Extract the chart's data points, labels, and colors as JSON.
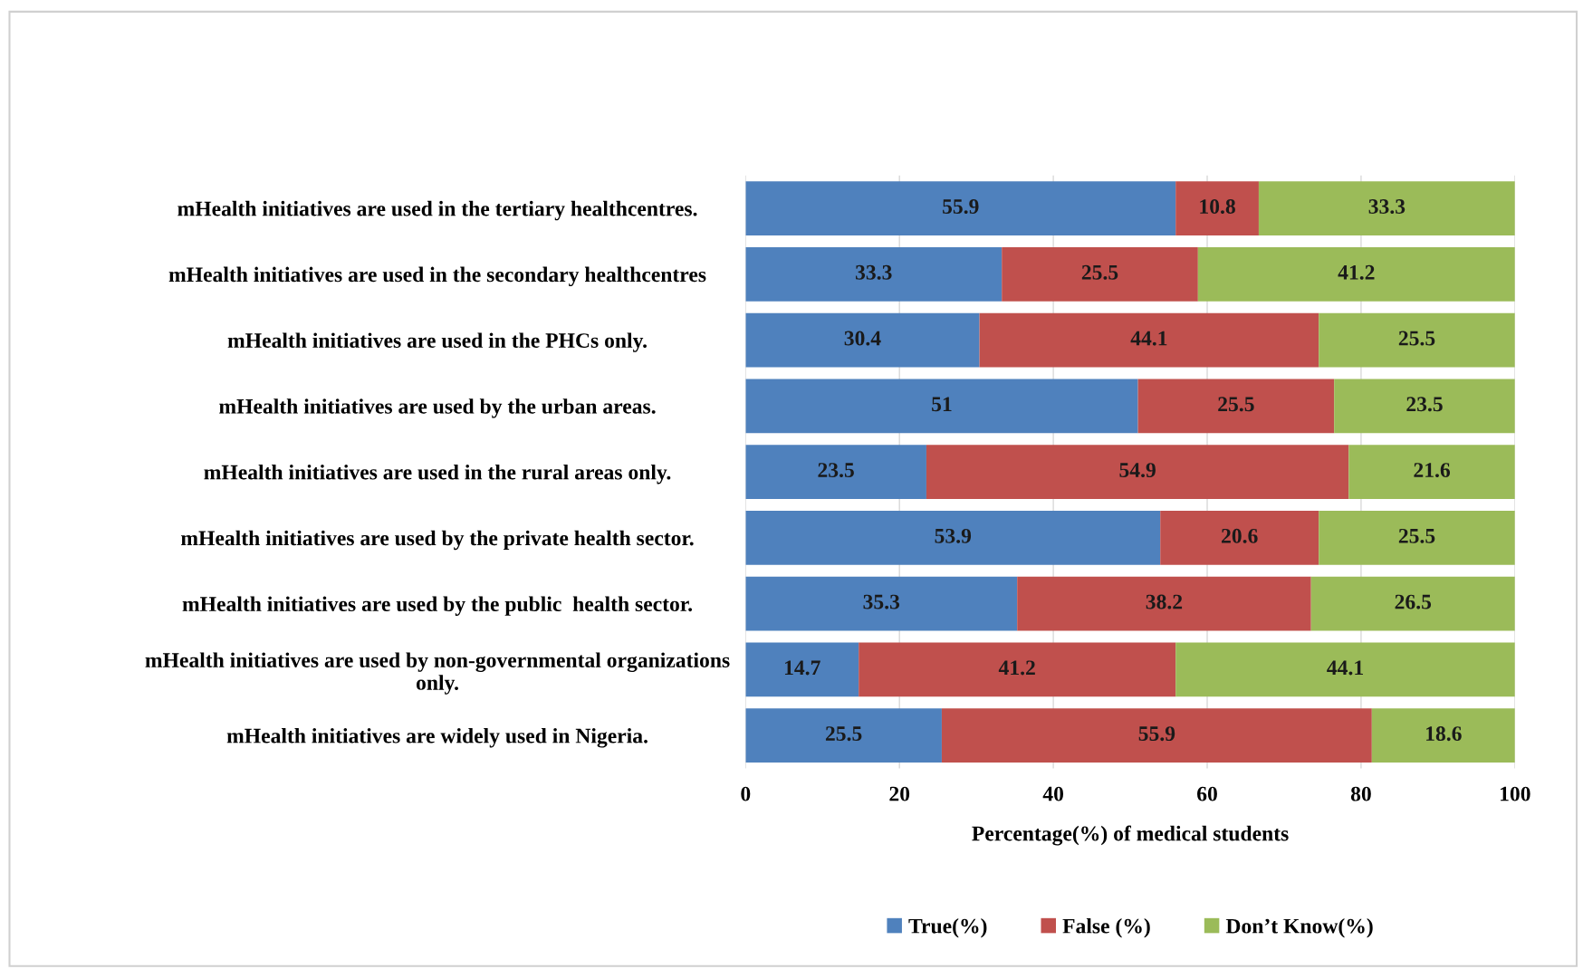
{
  "chart_data": {
    "type": "bar",
    "orientation": "horizontal",
    "stacked": true,
    "categories": [
      "mHealth initiatives are used in the tertiary healthcentres.",
      "mHealth initiatives are used in the secondary healthcentres",
      "mHealth initiatives are used in the PHCs only.",
      "mHealth initiatives are used by the urban areas.",
      "mHealth initiatives are used in the rural areas only.",
      "mHealth initiatives are used by the private health sector.",
      "mHealth initiatives are used by the public  health sector.",
      "mHealth initiatives are used by non-governmental organizations\nonly.",
      "mHealth initiatives are widely used in Nigeria."
    ],
    "series": [
      {
        "name": "True(%)",
        "color": "#4f81bd",
        "values": [
          55.9,
          33.3,
          30.4,
          51,
          23.5,
          53.9,
          35.3,
          14.7,
          25.5
        ]
      },
      {
        "name": "False (%)",
        "color": "#c0504d",
        "values": [
          10.8,
          25.5,
          44.1,
          25.5,
          54.9,
          20.6,
          38.2,
          41.2,
          55.9
        ]
      },
      {
        "name": "Don’t Know(%)",
        "color": "#9bbb59",
        "values": [
          33.3,
          41.2,
          25.5,
          23.5,
          21.6,
          25.5,
          26.5,
          44.1,
          18.6
        ]
      }
    ],
    "xlim": [
      0,
      100
    ],
    "xticks": [
      0,
      20,
      40,
      60,
      80,
      100
    ],
    "xlabel": "Percentage(%) of medical students",
    "data_labels": true,
    "grid": "x",
    "legend": "bottom"
  }
}
